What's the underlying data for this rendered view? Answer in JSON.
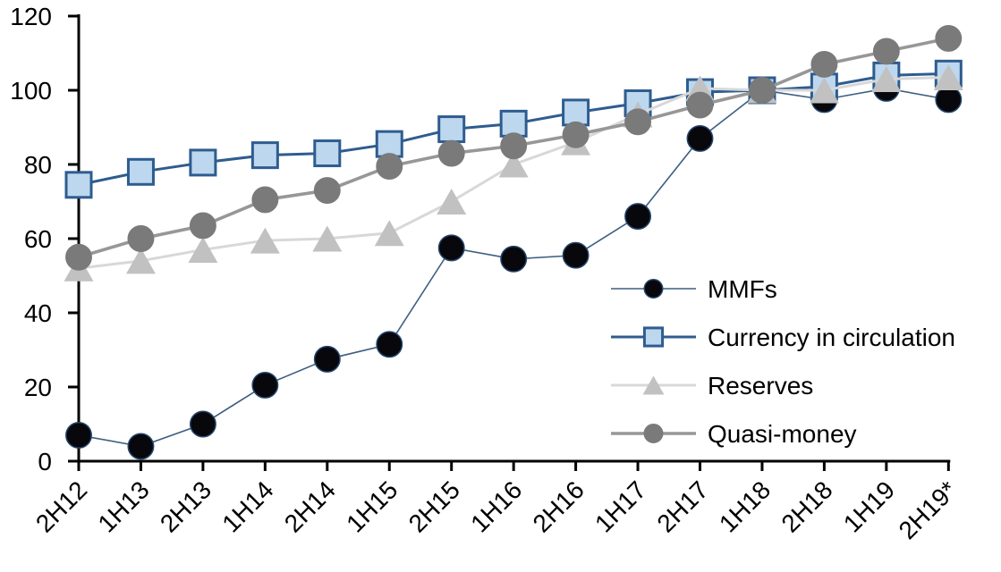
{
  "chart_data": {
    "type": "line",
    "title": "",
    "xlabel": "",
    "ylabel": "",
    "ylim": [
      0,
      120
    ],
    "yticks": [
      0,
      20,
      40,
      60,
      80,
      100,
      120
    ],
    "grid": false,
    "legend_position": "center-right",
    "axis_color": "#000000",
    "categories": [
      "2H12",
      "1H13",
      "2H13",
      "1H14",
      "2H14",
      "1H15",
      "2H15",
      "1H16",
      "2H16",
      "1H17",
      "2H17",
      "1H18",
      "2H18",
      "1H19",
      "2H19*"
    ],
    "series": [
      {
        "name": "MMFs",
        "marker": "circle",
        "marker_fill": "#07070c",
        "marker_stroke": "#24456b",
        "line_color": "#3d5f82",
        "line_width": 1.6,
        "values": [
          7,
          4,
          10,
          20.5,
          27.5,
          31.5,
          57.5,
          54.5,
          55.5,
          66,
          87,
          100,
          97.5,
          100.5,
          97.5
        ]
      },
      {
        "name": "Currency in circulation",
        "marker": "square",
        "marker_fill": "#bdd7ee",
        "marker_stroke": "#2e5c8f",
        "line_color": "#2e5c8f",
        "line_width": 3,
        "values": [
          74.5,
          78,
          80.5,
          82.5,
          83,
          85.5,
          89.5,
          91,
          94,
          96.5,
          99.5,
          100,
          101,
          104,
          104.5
        ]
      },
      {
        "name": "Reserves",
        "marker": "triangle",
        "marker_fill": "#c1c1c1",
        "marker_stroke": "#c1c1c1",
        "line_color": "#d8d8d8",
        "line_width": 3,
        "values": [
          52,
          54,
          57,
          59.5,
          60,
          61.5,
          70,
          80,
          86,
          93.5,
          100.5,
          100,
          100,
          103,
          103.5
        ]
      },
      {
        "name": "Quasi-money",
        "marker": "circle",
        "marker_fill": "#7a7a7a",
        "marker_stroke": "#7a7a7a",
        "line_color": "#979797",
        "line_width": 3.6,
        "values": [
          55,
          60,
          63.5,
          70.5,
          73,
          79.5,
          83,
          85,
          88,
          91.5,
          96,
          100,
          107,
          110.5,
          114
        ]
      }
    ]
  }
}
